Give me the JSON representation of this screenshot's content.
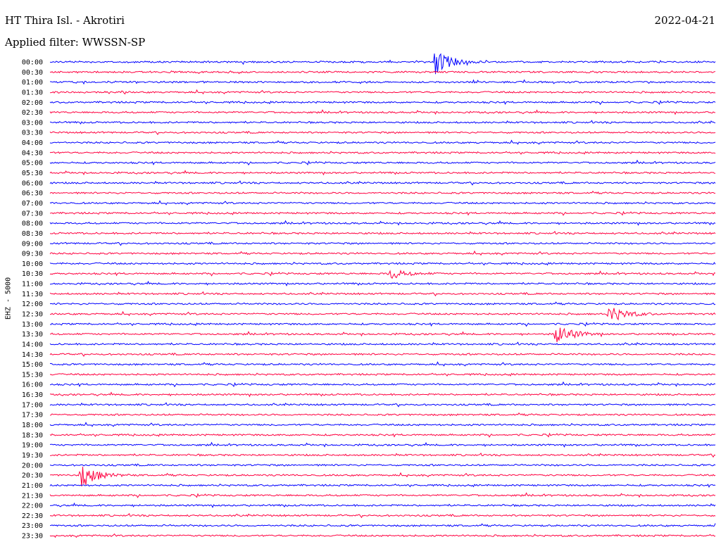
{
  "header": {
    "station": "HT Thira Isl. - Akrotiri",
    "date": "2022-04-21",
    "filter": "Applied filter: WWSSN-SP",
    "channel": "EHZ - 5000"
  },
  "colors": {
    "even_row": "#0000ff",
    "odd_row": "#ff0040"
  },
  "chart_data": {
    "type": "line",
    "title": "HT Thira Isl. - Akrotiri",
    "date": "2022-04-21",
    "filter": "WWSSN-SP",
    "ylabel": "EHZ - 5000",
    "rows": [
      "00:00",
      "00:30",
      "01:00",
      "01:30",
      "02:00",
      "02:30",
      "03:00",
      "03:30",
      "04:00",
      "04:30",
      "05:00",
      "05:30",
      "06:00",
      "06:30",
      "07:00",
      "07:30",
      "08:00",
      "08:30",
      "09:00",
      "09:30",
      "10:00",
      "10:30",
      "11:00",
      "11:30",
      "12:00",
      "12:30",
      "13:00",
      "13:30",
      "14:00",
      "14:30",
      "15:00",
      "15:30",
      "16:00",
      "16:30",
      "17:00",
      "17:30",
      "18:00",
      "18:30",
      "19:00",
      "19:30",
      "20:00",
      "20:30",
      "21:00",
      "21:30",
      "22:00",
      "22:30",
      "23:00",
      "23:30"
    ],
    "row_span_minutes": 30,
    "events": [
      {
        "row": "00:00",
        "minute": 17.3,
        "amplitude": 20
      },
      {
        "row": "10:30",
        "minute": 15.3,
        "amplitude": 8
      },
      {
        "row": "12:30",
        "minute": 25.2,
        "amplitude": 14
      },
      {
        "row": "13:30",
        "minute": 22.8,
        "amplitude": 16
      },
      {
        "row": "20:30",
        "minute": 1.4,
        "amplitude": 18
      }
    ]
  }
}
